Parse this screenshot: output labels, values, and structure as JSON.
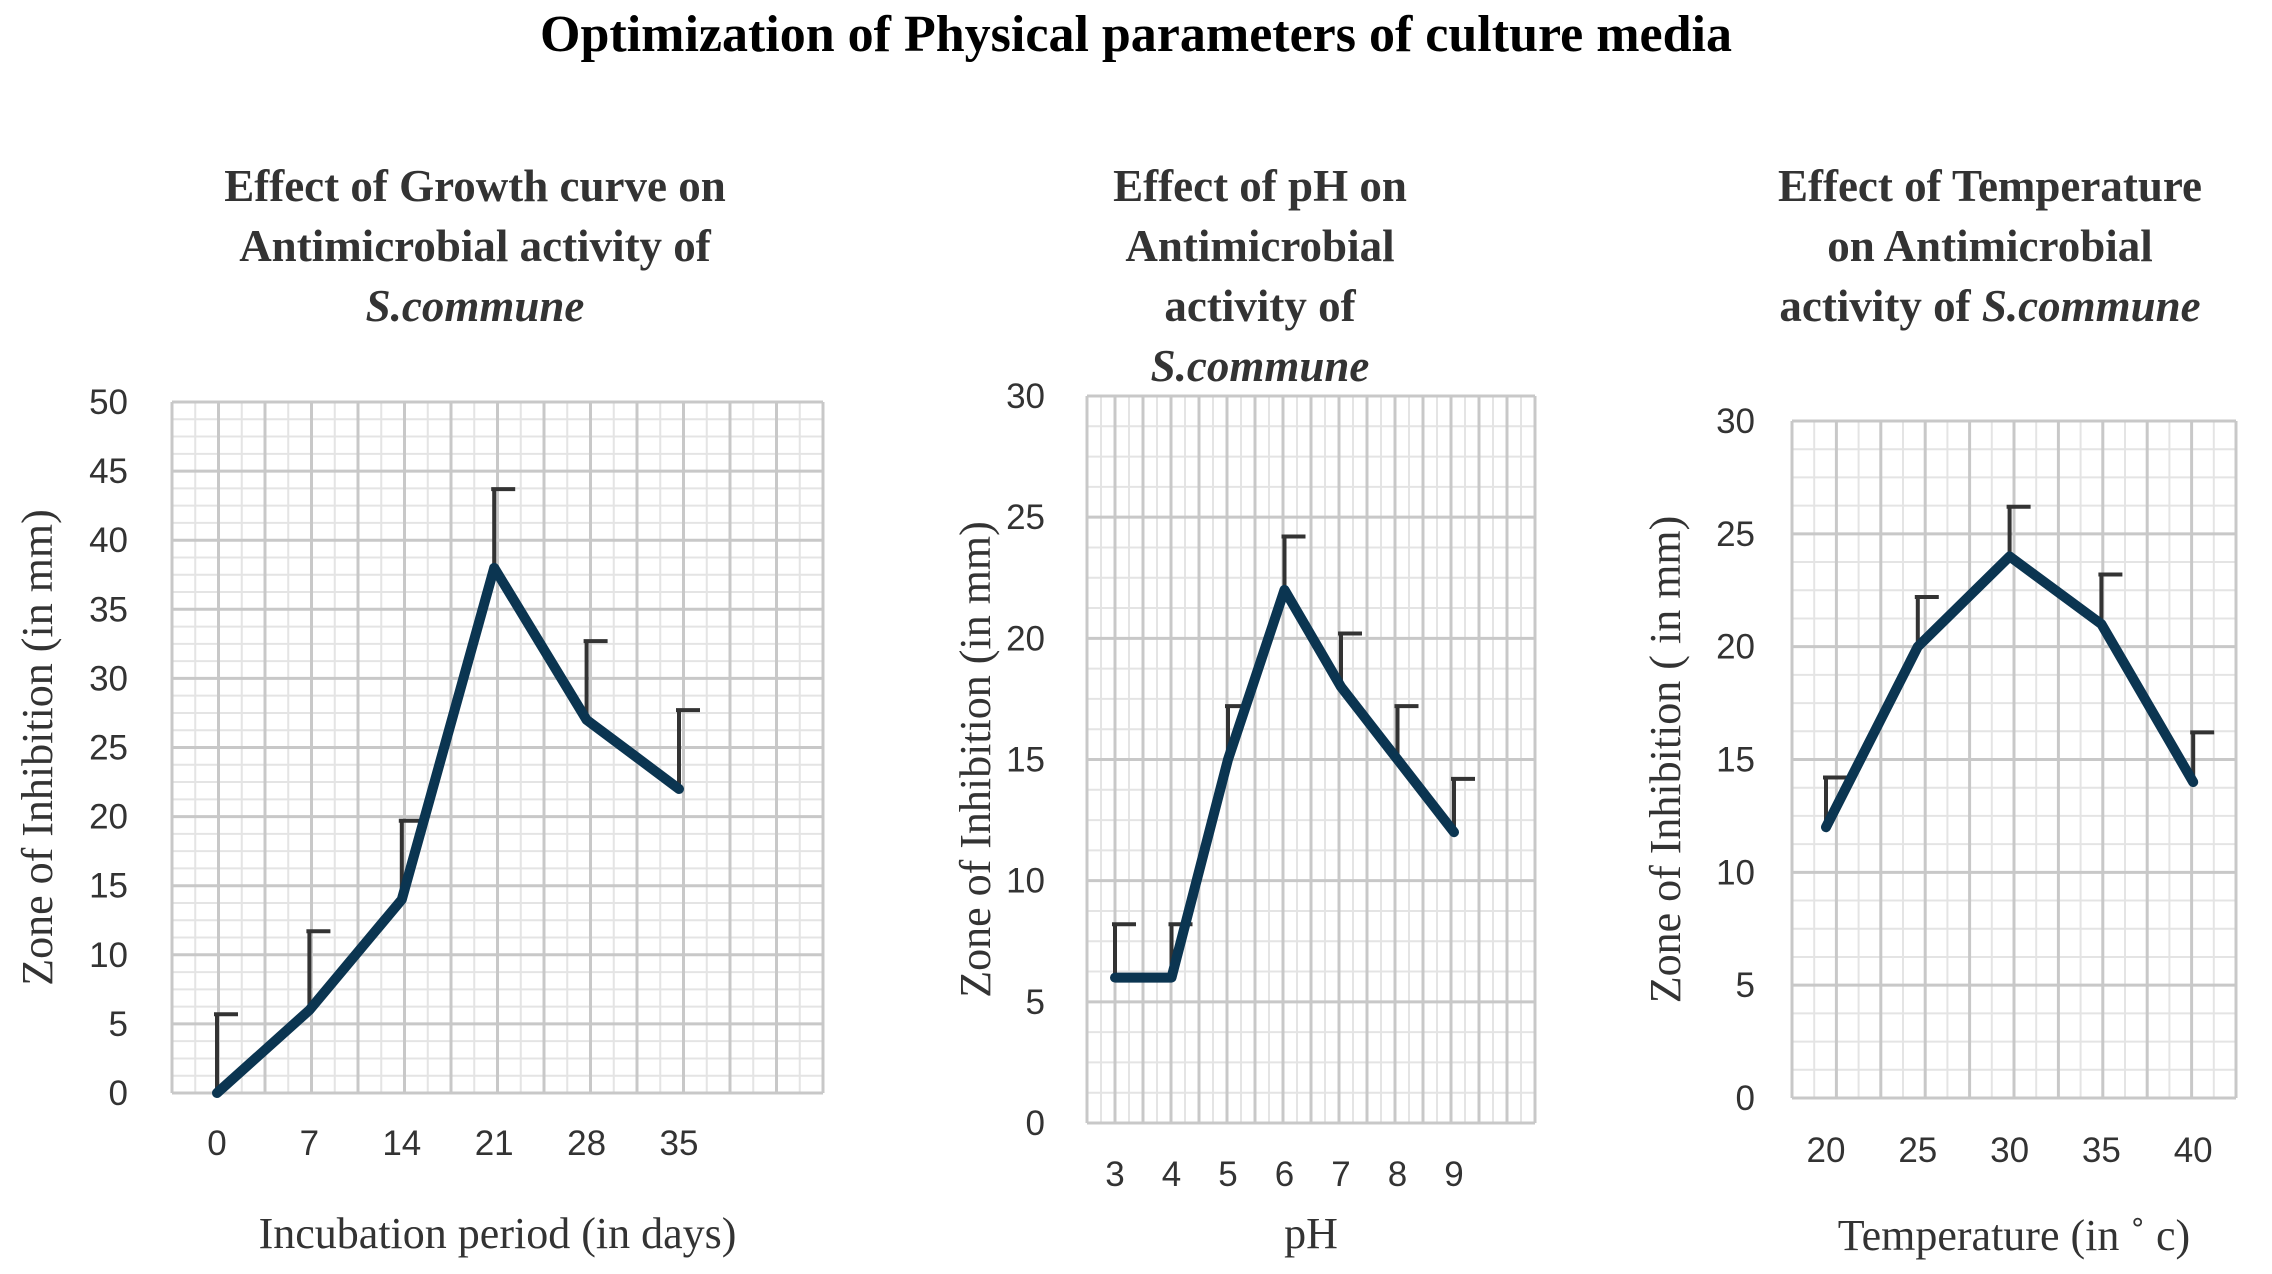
{
  "title": "Optimization of Physical parameters of culture media",
  "colors": {
    "line": "#0b3551",
    "error_bar": "#333333",
    "grid_major": "#c8c8c8",
    "grid_minor": "#e4e4e4",
    "text": "#333333"
  },
  "chart_data": [
    {
      "type": "line",
      "title_lines": [
        "Effect of Growth curve on",
        "Antimicrobial activity of"
      ],
      "title_italic": "S.commune",
      "xlabel": "Incubation period (in days)",
      "ylabel": "Zone of Inhibition (in mm)",
      "categories": [
        "0",
        "7",
        "14",
        "21",
        "28",
        "35"
      ],
      "values": [
        0,
        6,
        14,
        38,
        27,
        22
      ],
      "error_plus": [
        5.7,
        5.7,
        5.7,
        5.7,
        5.7,
        5.7
      ],
      "yticks": [
        "0",
        "5",
        "10",
        "15",
        "20",
        "25",
        "30",
        "35",
        "40",
        "45",
        "50"
      ],
      "ylim": [
        0,
        50
      ],
      "grid": true
    },
    {
      "type": "line",
      "title_lines": [
        "Effect of pH on",
        "Antimicrobial",
        "activity of"
      ],
      "title_italic": "S.commune",
      "xlabel": "pH",
      "ylabel": "Zone of Inhibition (in mm)",
      "categories": [
        "3",
        "4",
        "5",
        "6",
        "7",
        "8",
        "9"
      ],
      "values": [
        6,
        6,
        15,
        22,
        18,
        15,
        12
      ],
      "error_plus": [
        2.2,
        2.2,
        2.2,
        2.2,
        2.2,
        2.2,
        2.2
      ],
      "yticks": [
        "0",
        "5",
        "10",
        "15",
        "20",
        "25",
        "30"
      ],
      "ylim": [
        0,
        30
      ],
      "grid": true
    },
    {
      "type": "line",
      "title_lines": [
        "Effect of Temperature",
        "on Antimicrobial"
      ],
      "title_last_prefix": "activity of ",
      "title_italic": "S.commune",
      "xlabel": "Temperature (in ˚ c)",
      "ylabel": "Zone of Inhibition ( in mm)",
      "categories": [
        "20",
        "25",
        "30",
        "35",
        "40"
      ],
      "values": [
        12,
        20,
        24,
        21,
        14
      ],
      "error_plus": [
        2.2,
        2.2,
        2.2,
        2.2,
        2.2
      ],
      "yticks": [
        "0",
        "5",
        "10",
        "15",
        "20",
        "25",
        "30"
      ],
      "ylim": [
        0,
        30
      ],
      "grid": true
    }
  ]
}
